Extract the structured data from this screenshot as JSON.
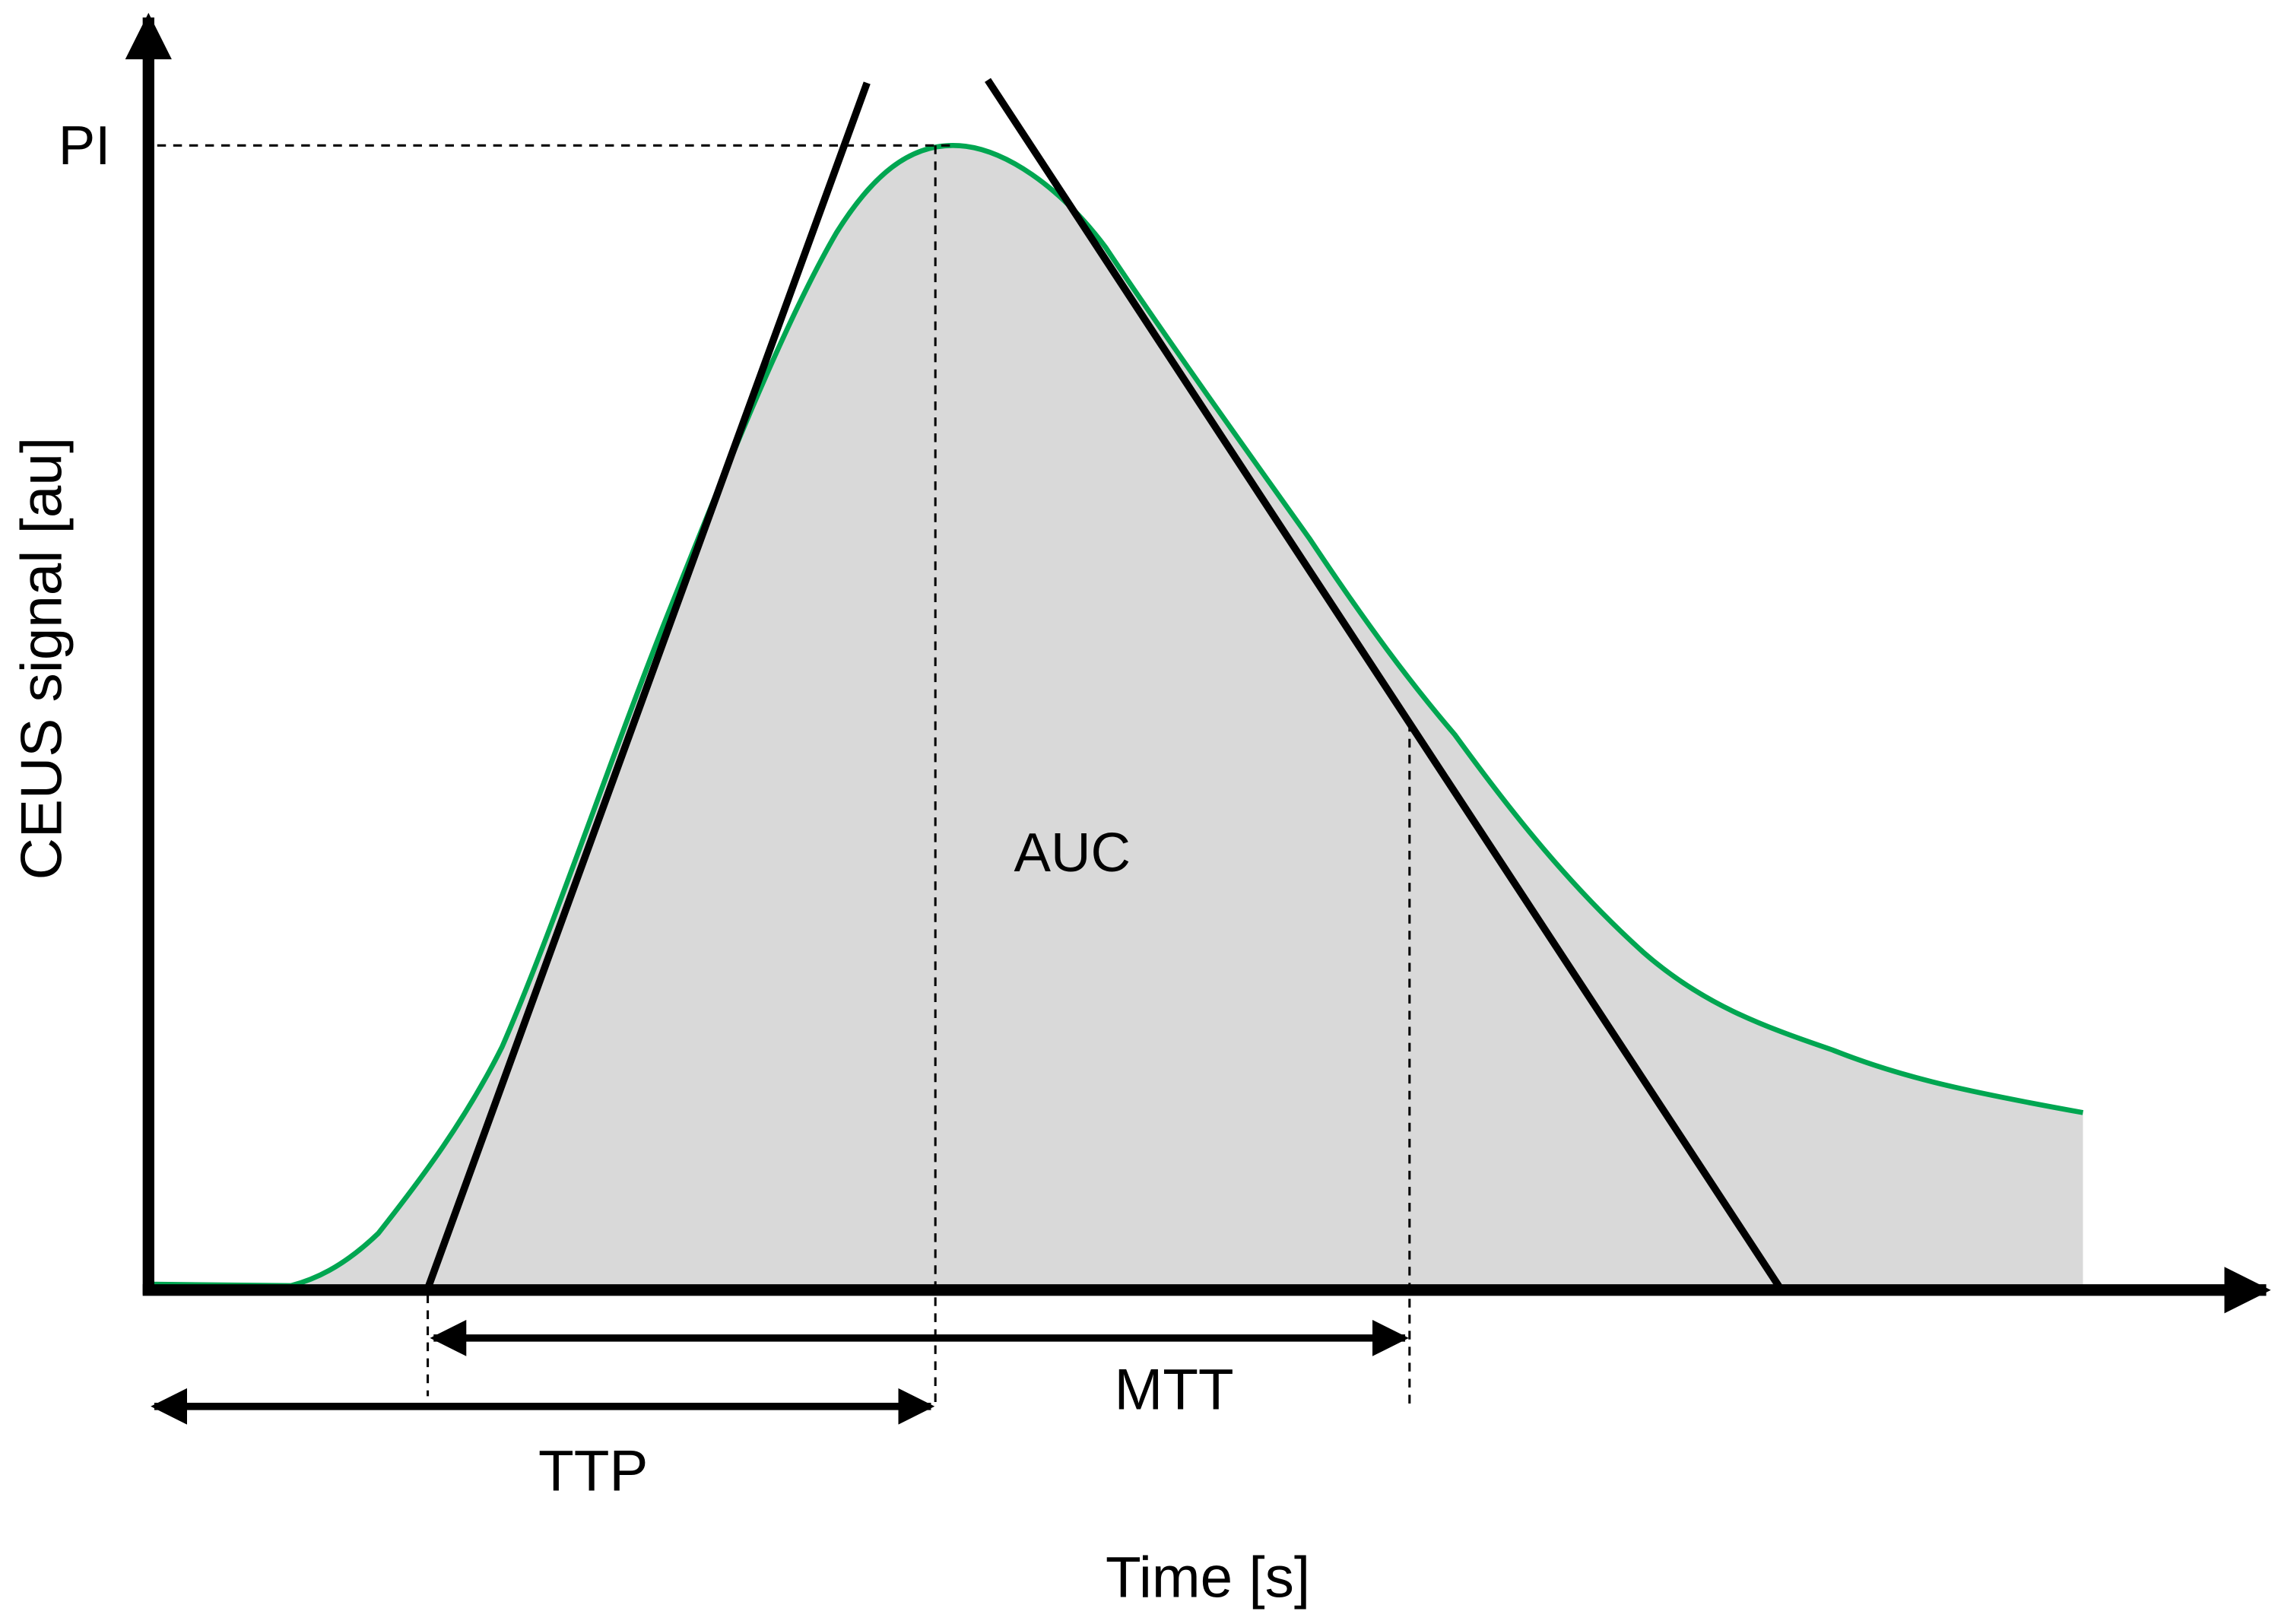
{
  "labels": {
    "peak": "PI",
    "area": "AUC",
    "mean_transit": "MTT",
    "time_to_peak": "TTP",
    "x_axis": "Time [s]",
    "y_axis": "CEUS signal [au]"
  },
  "colors": {
    "curve": "#00a651",
    "area_fill": "#d9d9d9",
    "axes": "#000000",
    "tangents": "#000000",
    "guides": "#000000"
  }
}
